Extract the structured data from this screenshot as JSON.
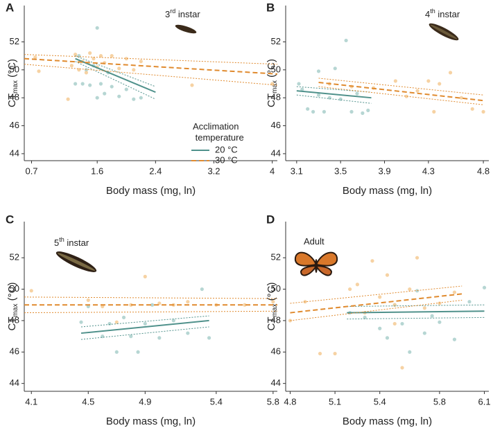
{
  "chart_data": [
    {
      "type": "scatter",
      "panel": "A",
      "ylabel": {
        "main": "CT",
        "sub": "max",
        "unit": " (°C)"
      },
      "xlabel": "Body mass (mg, ln)",
      "annotation": {
        "main": "3",
        "sup": "rd",
        "rest": " instar"
      },
      "legend": {
        "title": "Acclimation temperature"
      },
      "xlim": [
        0.6,
        4.07
      ],
      "xticks": [
        0.7,
        1.6,
        2.4,
        3.2,
        4
      ],
      "ylim": [
        43.5,
        54.6
      ],
      "yticks": [
        44,
        46,
        48,
        50,
        52
      ],
      "series": [
        {
          "name": "20 °C",
          "color": "#4f918b",
          "point_color": "#a9cfcb",
          "line_style": "solid",
          "x": [
            1.3,
            1.4,
            1.5,
            1.6,
            1.7,
            1.8,
            1.9,
            2.0,
            2.1,
            2.2,
            1.6,
            1.55,
            1.45,
            1.35,
            1.75,
            1.65
          ],
          "values": [
            49,
            49,
            48.9,
            48,
            48.3,
            48.8,
            48.1,
            48.6,
            47.9,
            48,
            53,
            50.3,
            50,
            51,
            49.8,
            49
          ],
          "fit": {
            "x": [
              1.3,
              2.4
            ],
            "y": [
              50.8,
              48.4
            ]
          },
          "ci_upper": {
            "x": [
              1.3,
              2.4
            ],
            "y": [
              51,
              48.8
            ]
          },
          "ci_lower": {
            "x": [
              1.3,
              2.4
            ],
            "y": [
              50.6,
              47.9
            ]
          }
        },
        {
          "name": "30 °C",
          "color": "#e08a2e",
          "point_color": "#f4ca93",
          "line_style": "dashed",
          "x": [
            0.75,
            0.8,
            1.2,
            1.3,
            1.4,
            1.5,
            1.55,
            1.6,
            1.65,
            1.7,
            1.8,
            1.9,
            2.0,
            2.1,
            2.2,
            1.35,
            1.45,
            2.9,
            4.0,
            1.25
          ],
          "values": [
            50.9,
            49.9,
            47.9,
            51.1,
            50.6,
            51.2,
            50.8,
            50.2,
            51,
            50.5,
            51,
            50.1,
            50.8,
            50,
            50.6,
            50,
            49.8,
            48.9,
            49,
            50.3
          ],
          "fit": {
            "x": [
              0.6,
              4.07
            ],
            "y": [
              50.8,
              49.7
            ]
          },
          "ci_upper": {
            "x": [
              0.6,
              4.07
            ],
            "y": [
              51.1,
              50.4
            ]
          },
          "ci_lower": {
            "x": [
              0.6,
              4.07
            ],
            "y": [
              50.4,
              48.9
            ]
          }
        }
      ]
    },
    {
      "type": "scatter",
      "panel": "B",
      "ylabel": {
        "main": "CT",
        "sub": "max",
        "unit": " (°C)"
      },
      "xlabel": "Body mass (mg, ln)",
      "annotation": {
        "main": "4",
        "sup": "th",
        "rest": " instar"
      },
      "xlim": [
        3.0,
        4.85
      ],
      "xticks": [
        3.1,
        3.5,
        3.9,
        4.3,
        4.8
      ],
      "ylim": [
        43.5,
        54.6
      ],
      "yticks": [
        44,
        46,
        48,
        50,
        52
      ],
      "series": [
        {
          "color": "#4f918b",
          "point_color": "#a9cfcb",
          "line_style": "solid",
          "x": [
            3.12,
            3.15,
            3.2,
            3.25,
            3.3,
            3.35,
            3.4,
            3.45,
            3.5,
            3.55,
            3.6,
            3.65,
            3.7,
            3.75,
            3.3
          ],
          "values": [
            49,
            48.6,
            47.2,
            47,
            48.2,
            47,
            48,
            50.1,
            47.9,
            52.1,
            47,
            48.3,
            46.9,
            47.1,
            49.9
          ],
          "fit": {
            "x": [
              3.1,
              3.78
            ],
            "y": [
              48.5,
              48.0
            ]
          },
          "ci_upper": {
            "x": [
              3.1,
              3.78
            ],
            "y": [
              48.8,
              48.4
            ]
          },
          "ci_lower": {
            "x": [
              3.1,
              3.78
            ],
            "y": [
              48.2,
              47.6
            ]
          }
        },
        {
          "color": "#e08a2e",
          "point_color": "#f4ca93",
          "line_style": "dashed",
          "x": [
            3.4,
            3.6,
            3.8,
            4.0,
            4.1,
            4.2,
            4.3,
            4.35,
            4.4,
            4.5,
            4.6,
            4.7,
            4.8
          ],
          "values": [
            49,
            48.8,
            48.7,
            49.2,
            48.1,
            48.5,
            49.2,
            47,
            49,
            49.8,
            48,
            47.2,
            47
          ],
          "fit": {
            "x": [
              3.3,
              4.8
            ],
            "y": [
              49.1,
              47.8
            ]
          },
          "ci_upper": {
            "x": [
              3.3,
              4.8
            ],
            "y": [
              49.4,
              48.2
            ]
          },
          "ci_lower": {
            "x": [
              3.3,
              4.8
            ],
            "y": [
              48.8,
              47.5
            ]
          }
        }
      ]
    },
    {
      "type": "scatter",
      "panel": "C",
      "ylabel": {
        "main": "CT",
        "sub": "max",
        "unit": " (°C)"
      },
      "xlabel": "Body mass (mg, ln)",
      "annotation": {
        "main": "5",
        "sup": "th",
        "rest": " instar"
      },
      "xlim": [
        4.05,
        5.83
      ],
      "xticks": [
        4.1,
        4.5,
        4.9,
        5.4,
        5.8
      ],
      "ylim": [
        43.5,
        54.3
      ],
      "yticks": [
        44,
        46,
        48,
        50,
        52
      ],
      "series": [
        {
          "color": "#4f918b",
          "point_color": "#a9cfcb",
          "line_style": "solid",
          "x": [
            4.45,
            4.5,
            4.6,
            4.7,
            4.75,
            4.8,
            4.85,
            4.9,
            4.95,
            5.0,
            5.1,
            5.2,
            5.3,
            5.35,
            4.65
          ],
          "values": [
            47.9,
            48.9,
            47,
            46,
            48.2,
            47,
            46,
            47.8,
            49,
            46.9,
            48,
            47.2,
            50,
            46.9,
            47.8
          ],
          "fit": {
            "x": [
              4.45,
              5.35
            ],
            "y": [
              47.2,
              48.0
            ]
          },
          "ci_upper": {
            "x": [
              4.45,
              5.35
            ],
            "y": [
              47.6,
              48.3
            ]
          },
          "ci_lower": {
            "x": [
              4.45,
              5.35
            ],
            "y": [
              46.8,
              47.6
            ]
          }
        },
        {
          "color": "#e08a2e",
          "point_color": "#f4ca93",
          "line_style": "dashed",
          "x": [
            4.1,
            4.5,
            4.6,
            4.8,
            4.9,
            5.0,
            5.1,
            5.2,
            5.4,
            5.6,
            5.8,
            4.7
          ],
          "values": [
            49.9,
            49.3,
            48.9,
            49,
            50.8,
            49.1,
            49,
            49.2,
            49,
            49,
            49.2,
            47.9
          ],
          "fit": {
            "x": [
              4.05,
              5.83
            ],
            "y": [
              49.0,
              49.0
            ]
          },
          "ci_upper": {
            "x": [
              4.05,
              5.83
            ],
            "y": [
              49.5,
              49.4
            ]
          },
          "ci_lower": {
            "x": [
              4.05,
              5.83
            ],
            "y": [
              48.5,
              48.6
            ]
          }
        }
      ]
    },
    {
      "type": "scatter",
      "panel": "D",
      "ylabel": {
        "main": "CT",
        "sub": "max",
        "unit": " (°C)"
      },
      "xlabel": "Body mass (mg, ln)",
      "annotation": {
        "main": "Adult"
      },
      "xlim": [
        4.77,
        6.13
      ],
      "xticks": [
        4.8,
        5.1,
        5.4,
        5.8,
        6.1
      ],
      "ylim": [
        43.5,
        54.3
      ],
      "yticks": [
        44,
        46,
        48,
        50,
        52
      ],
      "series": [
        {
          "color": "#4f918b",
          "point_color": "#a9cfcb",
          "line_style": "solid",
          "x": [
            5.2,
            5.3,
            5.4,
            5.5,
            5.55,
            5.6,
            5.65,
            5.7,
            5.75,
            5.8,
            5.9,
            6.0,
            6.1,
            5.45
          ],
          "values": [
            48.5,
            48.2,
            47.5,
            49,
            47.8,
            46,
            49.9,
            47.2,
            48.3,
            47.9,
            46.8,
            49.2,
            50.1,
            46.9
          ],
          "fit": {
            "x": [
              5.18,
              6.1
            ],
            "y": [
              48.5,
              48.6
            ]
          },
          "ci_upper": {
            "x": [
              5.18,
              6.1
            ],
            "y": [
              48.9,
              49.0
            ]
          },
          "ci_lower": {
            "x": [
              5.18,
              6.1
            ],
            "y": [
              48.1,
              48.2
            ]
          }
        },
        {
          "color": "#e08a2e",
          "point_color": "#f4ca93",
          "line_style": "dashed",
          "x": [
            4.8,
            4.9,
            5.0,
            5.1,
            5.2,
            5.3,
            5.35,
            5.4,
            5.45,
            5.5,
            5.55,
            5.6,
            5.65,
            5.7,
            5.8,
            5.9,
            5.25,
            5.5
          ],
          "values": [
            48,
            49.2,
            45.9,
            45.9,
            50,
            48.5,
            51.8,
            49.5,
            50.9,
            47.8,
            45,
            50,
            52,
            48.8,
            49.1,
            49.8,
            50.3,
            49
          ],
          "fit": {
            "x": [
              4.8,
              5.95
            ],
            "y": [
              48.5,
              49.7
            ]
          },
          "ci_upper": {
            "x": [
              4.8,
              5.95
            ],
            "y": [
              49.1,
              50.2
            ]
          },
          "ci_lower": {
            "x": [
              4.8,
              5.95
            ],
            "y": [
              48.0,
              49.3
            ]
          }
        }
      ]
    }
  ]
}
